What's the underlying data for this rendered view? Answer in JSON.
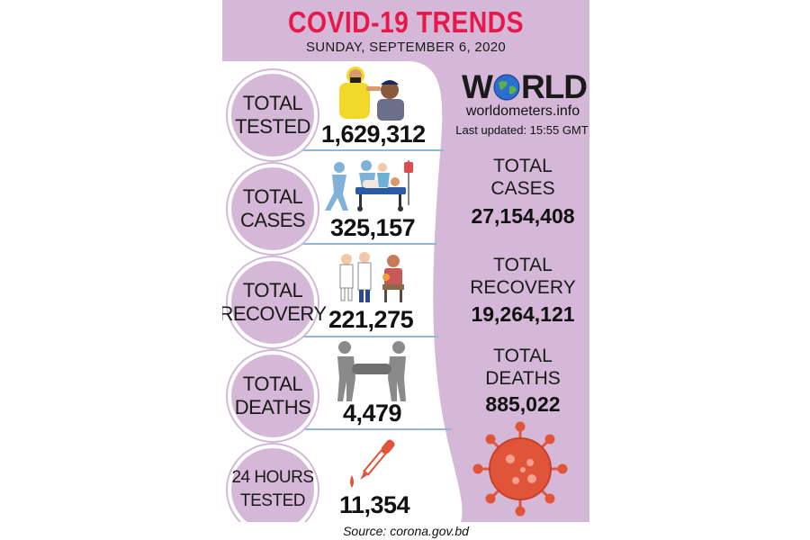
{
  "header": {
    "title": "COVID-19 TRENDS",
    "date": "SUNDAY, SEPTEMBER 6, 2020"
  },
  "bangladesh": [
    {
      "label": "TOTAL\nTESTED",
      "value": "1,629,312",
      "icon": "testing-swab-icon"
    },
    {
      "label": "TOTAL\nCASES",
      "value": "325,157",
      "icon": "stretcher-patient-icon"
    },
    {
      "label": "TOTAL\nRECOVERY",
      "value": "221,275",
      "icon": "recovered-patients-icon"
    },
    {
      "label": "TOTAL\nDEATHS",
      "value": "4,479",
      "icon": "carrying-body-icon"
    },
    {
      "label": "24 HOURS\nTESTED",
      "value": "11,354",
      "icon": "dropper-icon"
    }
  ],
  "world": {
    "logo_left": "W",
    "logo_right": "RLD",
    "site": "worldometers.info",
    "updated": "Last updated: 15:55 GMT",
    "stats": [
      {
        "label": "TOTAL\nCASES",
        "value": "27,154,408"
      },
      {
        "label": "TOTAL\nRECOVERY",
        "value": "19,264,121"
      },
      {
        "label": "TOTAL\nDEATHS",
        "value": "885,022"
      }
    ]
  },
  "footer": {
    "source": "Source: corona.gov.bd"
  },
  "colors": {
    "background": "#d5b8d8",
    "title": "#e8194a",
    "divider": "#8fb8d8",
    "virus": "#e0543a"
  }
}
